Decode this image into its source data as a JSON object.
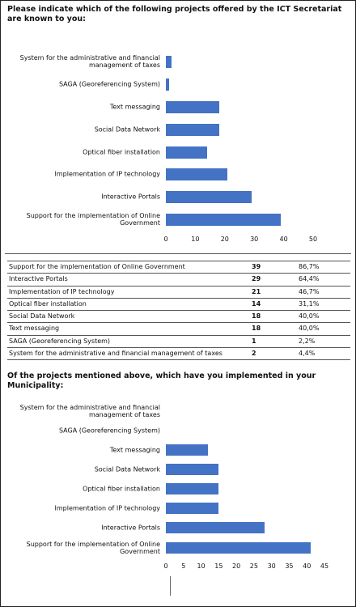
{
  "chart_data": [
    {
      "type": "bar",
      "orientation": "horizontal",
      "title": "Please indicate which of the following projects offered by the ICT Secretariat are known to you:",
      "categories": [
        "System for the administrative and financial management of taxes",
        "SAGA (Georeferencing System)",
        "Text messaging",
        "Social Data Network",
        "Optical fiber installation",
        "Implementation of IP technology",
        "Interactive Portals",
        "Support for the implementation of Online Government"
      ],
      "values": [
        2,
        1,
        18,
        18,
        14,
        21,
        29,
        39
      ],
      "color": "#4472c4",
      "xlim": [
        0,
        50
      ],
      "xticks": [
        0,
        10,
        20,
        30,
        40,
        50
      ],
      "grid": false
    },
    {
      "type": "bar",
      "orientation": "horizontal",
      "title": "Of the projects mentioned above, which have you implemented in your Municipality:",
      "categories": [
        "System for the administrative and financial management of taxes",
        "SAGA (Georeferencing System)",
        "Text messaging",
        "Social Data Network",
        "Optical fiber installation",
        "Implementation of IP technology",
        "Interactive Portals",
        "Support for the implementation of Online Government"
      ],
      "values": [
        0,
        0,
        12,
        15,
        15,
        15,
        28,
        41
      ],
      "color": "#4472c4",
      "xlim": [
        0,
        45
      ],
      "xticks": [
        0,
        5,
        10,
        15,
        20,
        25,
        30,
        35,
        40,
        45
      ],
      "grid": false
    }
  ],
  "table": {
    "rows": [
      [
        "Support for the implementation of Online Government",
        39,
        "86,7%"
      ],
      [
        "Interactive Portals",
        29,
        "64,4%"
      ],
      [
        "Implementation of IP technology",
        21,
        "46,7%"
      ],
      [
        "Optical fiber installation",
        14,
        "31,1%"
      ],
      [
        "Social Data Network",
        18,
        "40,0%"
      ],
      [
        "Text messaging",
        18,
        "40,0%"
      ],
      [
        "SAGA (Georeferencing System)",
        1,
        "2,2%"
      ],
      [
        "System for the administrative and financial management of taxes",
        2,
        "4,4%"
      ]
    ]
  }
}
